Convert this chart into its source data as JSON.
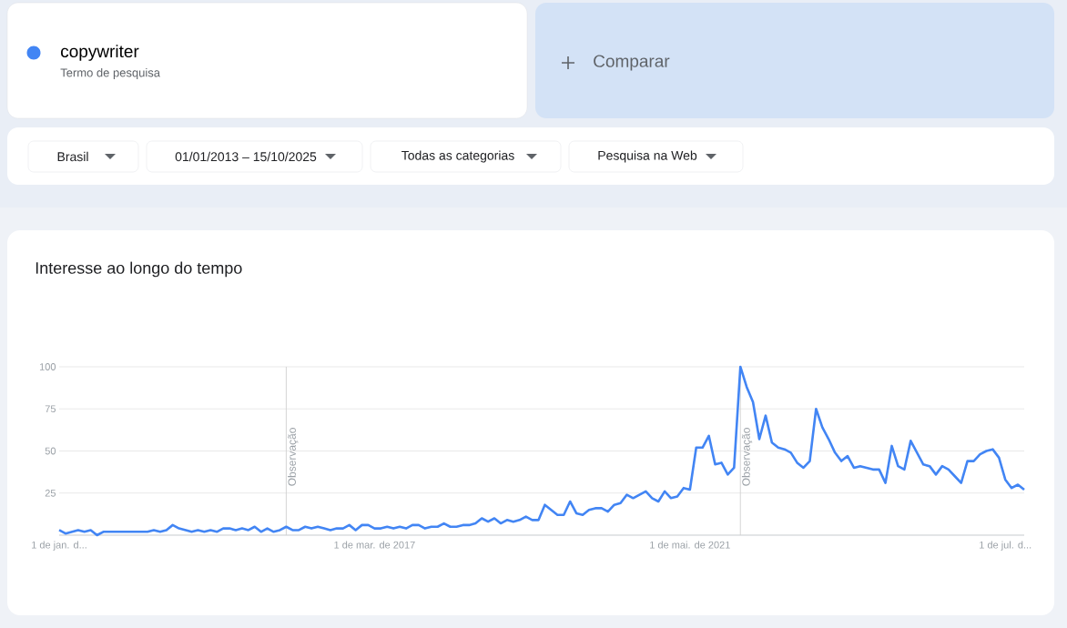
{
  "chart_data": {
    "type": "line",
    "title": "Interesse ao longo do tempo",
    "annotations": [
      "Termo de pesquisa",
      "Comparar",
      "Brasil",
      "01/01/2013 – 15/10/2025",
      "Todas as categorias",
      "Pesquisa na Web"
    ],
    "x": [
      "2013-01",
      "2013-02",
      "2013-03",
      "2013-04",
      "2013-05",
      "2013-06",
      "2013-07",
      "2013-08",
      "2013-09",
      "2013-10",
      "2013-11",
      "2013-12",
      "2014-01",
      "2014-02",
      "2014-03",
      "2014-04",
      "2014-05",
      "2014-06",
      "2014-07",
      "2014-08",
      "2014-09",
      "2014-10",
      "2014-11",
      "2014-12",
      "2015-01",
      "2015-02",
      "2015-03",
      "2015-04",
      "2015-05",
      "2015-06",
      "2015-07",
      "2015-08",
      "2015-09",
      "2015-10",
      "2015-11",
      "2015-12",
      "2016-01",
      "2016-02",
      "2016-03",
      "2016-04",
      "2016-05",
      "2016-06",
      "2016-07",
      "2016-08",
      "2016-09",
      "2016-10",
      "2016-11",
      "2016-12",
      "2017-01",
      "2017-02",
      "2017-03",
      "2017-04",
      "2017-05",
      "2017-06",
      "2017-07",
      "2017-08",
      "2017-09",
      "2017-10",
      "2017-11",
      "2017-12",
      "2018-01",
      "2018-02",
      "2018-03",
      "2018-04",
      "2018-05",
      "2018-06",
      "2018-07",
      "2018-08",
      "2018-09",
      "2018-10",
      "2018-11",
      "2018-12",
      "2019-01",
      "2019-02",
      "2019-03",
      "2019-04",
      "2019-05",
      "2019-06",
      "2019-07",
      "2019-08",
      "2019-09",
      "2019-10",
      "2019-11",
      "2019-12",
      "2020-01",
      "2020-02",
      "2020-03",
      "2020-04",
      "2020-05",
      "2020-06",
      "2020-07",
      "2020-08",
      "2020-09",
      "2020-10",
      "2020-11",
      "2020-12",
      "2021-01",
      "2021-02",
      "2021-03",
      "2021-04",
      "2021-05",
      "2021-06",
      "2021-07",
      "2021-08",
      "2021-09",
      "2021-10",
      "2021-11",
      "2021-12",
      "2022-01",
      "2022-02",
      "2022-03",
      "2022-04",
      "2022-05",
      "2022-06",
      "2022-07",
      "2022-08",
      "2022-09",
      "2022-10",
      "2022-11",
      "2022-12",
      "2023-01",
      "2023-02",
      "2023-03",
      "2023-04",
      "2023-05",
      "2023-06",
      "2023-07",
      "2023-08",
      "2023-09",
      "2023-10",
      "2023-11",
      "2023-12",
      "2024-01",
      "2024-02",
      "2024-03",
      "2024-04",
      "2024-05",
      "2024-06",
      "2024-07",
      "2024-08",
      "2024-09",
      "2024-10",
      "2024-11",
      "2024-12",
      "2025-01",
      "2025-02",
      "2025-03",
      "2025-04",
      "2025-05",
      "2025-06",
      "2025-07",
      "2025-08",
      "2025-09",
      "2025-10"
    ],
    "series": [
      {
        "name": "copywriter",
        "color": "#4285f4",
        "values": [
          3,
          1,
          2,
          3,
          2,
          3,
          0,
          2,
          2,
          2,
          2,
          2,
          2,
          2,
          2,
          3,
          2,
          3,
          6,
          4,
          3,
          2,
          3,
          2,
          3,
          2,
          4,
          4,
          3,
          4,
          3,
          5,
          2,
          4,
          2,
          3,
          5,
          3,
          3,
          5,
          4,
          5,
          4,
          3,
          4,
          4,
          6,
          3,
          6,
          6,
          4,
          4,
          5,
          4,
          5,
          4,
          6,
          6,
          4,
          5,
          5,
          7,
          5,
          5,
          6,
          6,
          7,
          10,
          8,
          10,
          7,
          9,
          8,
          9,
          11,
          9,
          9,
          18,
          15,
          12,
          12,
          20,
          13,
          12,
          15,
          16,
          16,
          14,
          18,
          19,
          24,
          22,
          24,
          26,
          22,
          20,
          26,
          22,
          23,
          28,
          27,
          52,
          52,
          59,
          42,
          43,
          36,
          40,
          100,
          88,
          79,
          57,
          71,
          55,
          52,
          51,
          49,
          43,
          40,
          44,
          75,
          64,
          57,
          49,
          44,
          47,
          40,
          41,
          40,
          39,
          39,
          31,
          53,
          41,
          39,
          56,
          49,
          42,
          41,
          36,
          41,
          39,
          35,
          31,
          44,
          44,
          48,
          50,
          51,
          46,
          33,
          28,
          30,
          27
        ]
      }
    ],
    "xlim": [
      "2013-01",
      "2025-10"
    ],
    "xticks": [
      {
        "value": "2013-01",
        "label": "1 de jan. d..."
      },
      {
        "value": "2017-03",
        "label": "1 de mar. de 2017"
      },
      {
        "value": "2021-05",
        "label": "1 de mai. de 2021"
      },
      {
        "value": "2025-07",
        "label": "1 de jul. d..."
      }
    ],
    "ylim": [
      0,
      100
    ],
    "yticks": [
      25,
      50,
      75,
      100
    ],
    "grid": "y",
    "legend": "top left",
    "ref_lines": [
      {
        "axis": "x",
        "value": "2016-01",
        "label": "Observação",
        "color": "#d0d0d0"
      },
      {
        "axis": "x",
        "value": "2022-01",
        "label": "Observação",
        "color": "#d0d0d0"
      }
    ]
  }
}
